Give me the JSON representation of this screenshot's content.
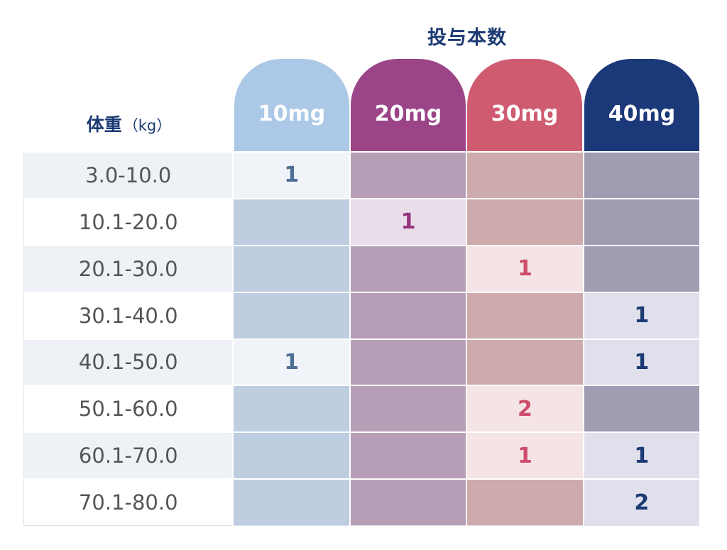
{
  "dose_header": "投与本数",
  "weight_header": {
    "label": "体重",
    "unit": "（kg）"
  },
  "colors": {
    "header_text": "#1c3a73",
    "columns": [
      {
        "header": "#abc8e6",
        "active": "#f0f4f8",
        "inactive": "#becddf",
        "text": "#4d6f96"
      },
      {
        "header": "#9b4588",
        "active": "#e9dde9",
        "inactive": "#b69fb6",
        "text": "#93357f"
      },
      {
        "header": "#cf5b71",
        "active": "#f5e4e6",
        "inactive": "#cdaaac",
        "text": "#cd4d6b"
      },
      {
        "header": "#1b3879",
        "active": "#e0e0ec",
        "inactive": "#9e9db2",
        "text": "#1c3a73"
      }
    ]
  },
  "columns": [
    "10mg",
    "20mg",
    "30mg",
    "40mg"
  ],
  "rows": [
    {
      "weight": "3.0-10.0",
      "doses": [
        "1",
        "",
        "",
        ""
      ]
    },
    {
      "weight": "10.1-20.0",
      "doses": [
        "",
        "1",
        "",
        ""
      ]
    },
    {
      "weight": "20.1-30.0",
      "doses": [
        "",
        "",
        "1",
        ""
      ]
    },
    {
      "weight": "30.1-40.0",
      "doses": [
        "",
        "",
        "",
        "1"
      ]
    },
    {
      "weight": "40.1-50.0",
      "doses": [
        "1",
        "",
        "",
        "1"
      ]
    },
    {
      "weight": "50.1-60.0",
      "doses": [
        "",
        "",
        "2",
        ""
      ]
    },
    {
      "weight": "60.1-70.0",
      "doses": [
        "",
        "",
        "1",
        "1"
      ]
    },
    {
      "weight": "70.1-80.0",
      "doses": [
        "",
        "",
        "",
        "2"
      ]
    }
  ]
}
